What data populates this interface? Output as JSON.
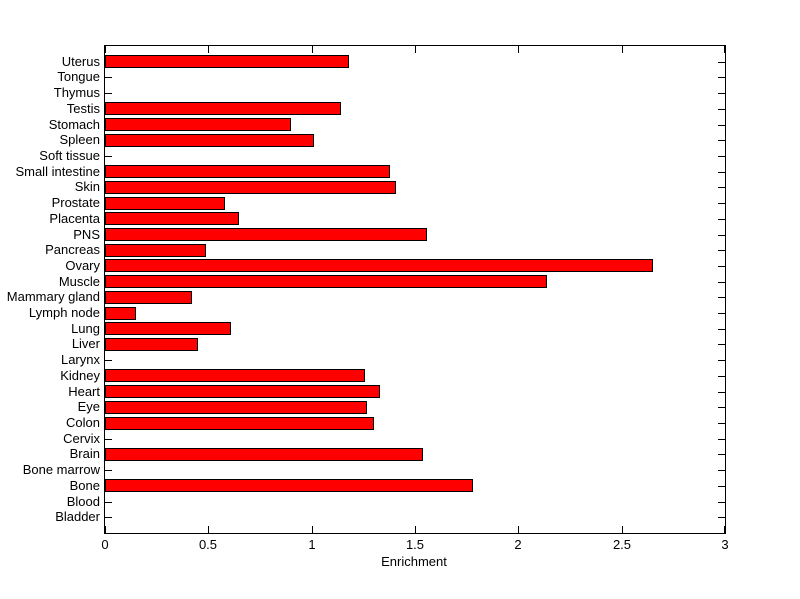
{
  "figure": {
    "background_color": "#FFFFFF"
  },
  "chart_data": {
    "type": "bar",
    "orientation": "horizontal",
    "title": "",
    "xlabel": "Enrichment",
    "ylabel": "",
    "xlim": [
      0,
      3
    ],
    "xtick_values": [
      0,
      0.5,
      1,
      1.5,
      2,
      2.5,
      3
    ],
    "xtick_labels": [
      "0",
      "0.5",
      "1",
      "1.5",
      "2",
      "2.5",
      "3"
    ],
    "grid": false,
    "legend": "none",
    "bar_color": "#FF0000",
    "bar_edge_color": "#000000",
    "axis_color": "#000000",
    "categories": [
      "Uterus",
      "Tongue",
      "Thymus",
      "Testis",
      "Stomach",
      "Spleen",
      "Soft tissue",
      "Small intestine",
      "Skin",
      "Prostate",
      "Placenta",
      "PNS",
      "Pancreas",
      "Ovary",
      "Muscle",
      "Mammary gland",
      "Lymph node",
      "Lung",
      "Liver",
      "Larynx",
      "Kidney",
      "Heart",
      "Eye",
      "Colon",
      "Cervix",
      "Brain",
      "Bone marrow",
      "Bone",
      "Blood",
      "Bladder"
    ],
    "values": [
      1.18,
      0,
      0,
      1.14,
      0.9,
      1.01,
      0,
      1.38,
      1.41,
      0.58,
      0.65,
      1.56,
      0.49,
      2.65,
      2.14,
      0.42,
      0.15,
      0.61,
      0.45,
      0,
      1.26,
      1.33,
      1.27,
      1.3,
      0,
      1.54,
      0,
      1.78,
      0,
      0
    ]
  }
}
